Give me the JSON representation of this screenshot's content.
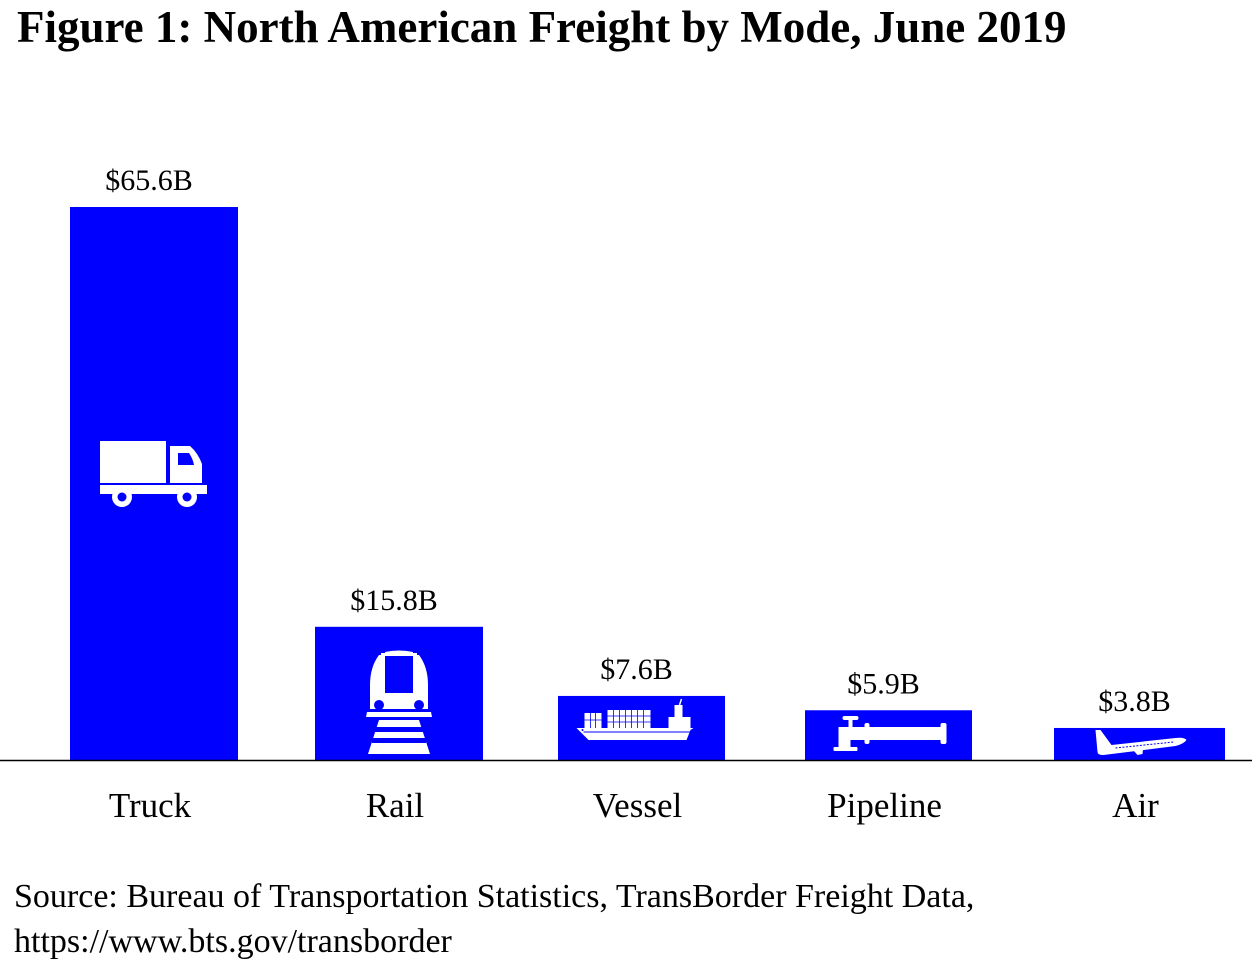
{
  "chart_data": {
    "type": "bar",
    "title": "Figure 1: North American Freight by Mode, June 2019",
    "categories": [
      "Truck",
      "Rail",
      "Vessel",
      "Pipeline",
      "Air"
    ],
    "values": [
      65.6,
      15.8,
      7.6,
      5.9,
      3.8
    ],
    "data_labels": [
      "$65.6B",
      "$15.8B",
      "$7.6B",
      "$5.9B",
      "$3.8B"
    ],
    "icons": [
      "truck-icon",
      "train-icon",
      "ship-icon",
      "pipeline-icon",
      "airplane-icon"
    ],
    "unit": "billion USD",
    "xlabel": "",
    "ylabel": "",
    "ylim": [
      0,
      65.6
    ],
    "grid": false,
    "legend": "none",
    "bar_color": "#0000FF",
    "icon_color": "#FFFFFF"
  },
  "source": {
    "line1": "Source: Bureau of Transportation Statistics, TransBorder Freight Data,",
    "line2": "https://www.bts.gov/transborder"
  }
}
